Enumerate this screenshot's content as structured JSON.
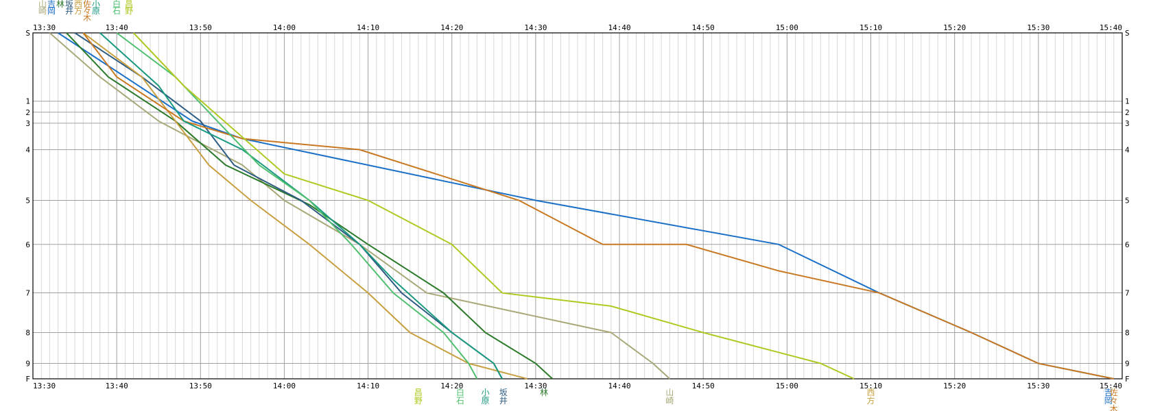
{
  "chart_data": {
    "type": "line",
    "title": "",
    "x_ticks": [
      "13:30",
      "13:40",
      "13:50",
      "14:00",
      "14:10",
      "14:20",
      "14:30",
      "14:40",
      "14:50",
      "15:00",
      "15:10",
      "15:20",
      "15:30",
      "15:40"
    ],
    "xlim": [
      "13:30",
      "15:40"
    ],
    "y_ticks": [
      "S",
      "1",
      "2",
      "3",
      "4",
      "5",
      "6",
      "7",
      "8",
      "9",
      "F"
    ],
    "y_positions": [
      0,
      1.55,
      1.8,
      2.05,
      2.65,
      3.8,
      4.8,
      5.9,
      6.8,
      7.5,
      7.85
    ],
    "grid": true,
    "grid_minor_x_minutes": 1,
    "series": [
      {
        "name": "山崎",
        "color": "#a8a878",
        "points": [
          [
            "13:32",
            0
          ],
          [
            "13:38",
            1
          ],
          [
            "13:45",
            2
          ],
          [
            "13:55",
            3
          ],
          [
            "14:00",
            3.8
          ],
          [
            "14:09",
            4.8
          ],
          [
            "14:17",
            5.9
          ],
          [
            "14:39",
            6.8
          ],
          [
            "14:44",
            7.5
          ],
          [
            "14:46",
            7.85
          ]
        ]
      },
      {
        "name": "吉岡",
        "color": "#1a6fc7",
        "points": [
          [
            "13:33",
            0
          ],
          [
            "13:41",
            1
          ],
          [
            "13:49",
            2
          ],
          [
            "13:55",
            2.4
          ],
          [
            "14:10",
            3
          ],
          [
            "14:30",
            3.8
          ],
          [
            "14:59",
            4.8
          ],
          [
            "15:11",
            5.9
          ],
          [
            "15:22",
            6.8
          ],
          [
            "15:30",
            7.5
          ],
          [
            "15:39",
            7.85
          ]
        ]
      },
      {
        "name": "林",
        "color": "#2a7a2a",
        "points": [
          [
            "13:34",
            0
          ],
          [
            "13:39",
            1
          ],
          [
            "13:47",
            2
          ],
          [
            "13:53",
            3
          ],
          [
            "14:03",
            3.9
          ],
          [
            "14:10",
            4.8
          ],
          [
            "14:19",
            5.9
          ],
          [
            "14:24",
            6.8
          ],
          [
            "14:30",
            7.5
          ],
          [
            "14:32",
            7.85
          ]
        ]
      },
      {
        "name": "坂井",
        "color": "#2d5c82",
        "points": [
          [
            "13:35",
            0
          ],
          [
            "13:43",
            1
          ],
          [
            "13:50",
            2
          ],
          [
            "13:54",
            3
          ],
          [
            "14:02",
            3.8
          ],
          [
            "14:09",
            4.8
          ],
          [
            "14:14",
            5.9
          ],
          [
            "14:20",
            6.8
          ],
          [
            "14:25",
            7.5
          ],
          [
            "14:26",
            7.85
          ]
        ]
      },
      {
        "name": "西方",
        "color": "#c8a040",
        "points": [
          [
            "13:36",
            0
          ],
          [
            "13:43",
            1
          ],
          [
            "13:47",
            2
          ],
          [
            "13:51",
            3
          ],
          [
            "13:56",
            3.8
          ],
          [
            "14:03",
            4.8
          ],
          [
            "14:10",
            5.9
          ],
          [
            "14:15",
            6.8
          ],
          [
            "14:22",
            7.5
          ],
          [
            "14:29",
            7.85
          ]
        ]
      },
      {
        "name": "佐々木",
        "color": "#c87820",
        "points": [
          [
            "13:36",
            0
          ],
          [
            "13:40",
            1
          ],
          [
            "13:48",
            2
          ],
          [
            "13:55",
            2.4
          ],
          [
            "14:09",
            2.65
          ],
          [
            "14:28",
            3.8
          ],
          [
            "14:38",
            4.8
          ],
          [
            "14:48",
            4.8
          ],
          [
            "14:59",
            5.4
          ],
          [
            "15:11",
            5.9
          ],
          [
            "15:22",
            6.8
          ],
          [
            "15:30",
            7.5
          ],
          [
            "15:39",
            7.85
          ]
        ]
      },
      {
        "name": "小原",
        "color": "#1a9a80",
        "points": [
          [
            "13:38",
            0
          ],
          [
            "13:45",
            1.2
          ],
          [
            "13:48",
            2.0
          ],
          [
            "13:55",
            2.65
          ],
          [
            "14:03",
            3.8
          ],
          [
            "14:09",
            4.8
          ],
          [
            "14:13",
            5.6
          ],
          [
            "14:20",
            6.8
          ],
          [
            "14:25",
            7.5
          ],
          [
            "14:26",
            7.85
          ]
        ]
      },
      {
        "name": "白石",
        "color": "#50c070",
        "points": [
          [
            "13:40",
            0
          ],
          [
            "13:47",
            1
          ],
          [
            "13:52",
            2
          ],
          [
            "13:57",
            3
          ],
          [
            "14:03",
            3.8
          ],
          [
            "14:08",
            4.8
          ],
          [
            "14:13",
            5.9
          ],
          [
            "14:19",
            6.8
          ],
          [
            "14:22",
            7.5
          ],
          [
            "14:23",
            7.85
          ]
        ]
      },
      {
        "name": "昌野",
        "color": "#b0c820",
        "points": [
          [
            "13:42",
            0
          ],
          [
            "13:48",
            1.2
          ],
          [
            "13:54",
            2.2
          ],
          [
            "14:00",
            3.2
          ],
          [
            "14:10",
            3.8
          ],
          [
            "14:20",
            4.8
          ],
          [
            "14:26",
            5.9
          ],
          [
            "14:39",
            6.2
          ],
          [
            "14:50",
            6.8
          ],
          [
            "15:04",
            7.5
          ],
          [
            "15:08",
            7.85
          ]
        ]
      }
    ],
    "top_labels": [
      "山崎",
      "吉岡",
      "林",
      "坂井",
      "西方",
      "佐々木",
      "小原",
      "白石",
      "昌野"
    ],
    "bottom_labels": [
      {
        "text": "昌野",
        "color": "#b0c820",
        "time": "14:16"
      },
      {
        "text": "白石",
        "color": "#50c070",
        "time": "14:21"
      },
      {
        "text": "小原",
        "color": "#1a9a80",
        "time": "14:24"
      },
      {
        "text": "坂井",
        "color": "#2d5c82",
        "time": "14:25"
      },
      {
        "text": "林",
        "color": "#2a7a2a",
        "time": "14:31"
      },
      {
        "text": "山崎",
        "color": "#a8a878",
        "time": "14:46"
      },
      {
        "text": "西方",
        "color": "#c8a040",
        "time": "15:10"
      },
      {
        "text": "吉岡",
        "color": "#1a6fc7",
        "time": "15:39"
      },
      {
        "text": "佐々木",
        "color": "#c87820",
        "time": "15:39"
      }
    ]
  }
}
